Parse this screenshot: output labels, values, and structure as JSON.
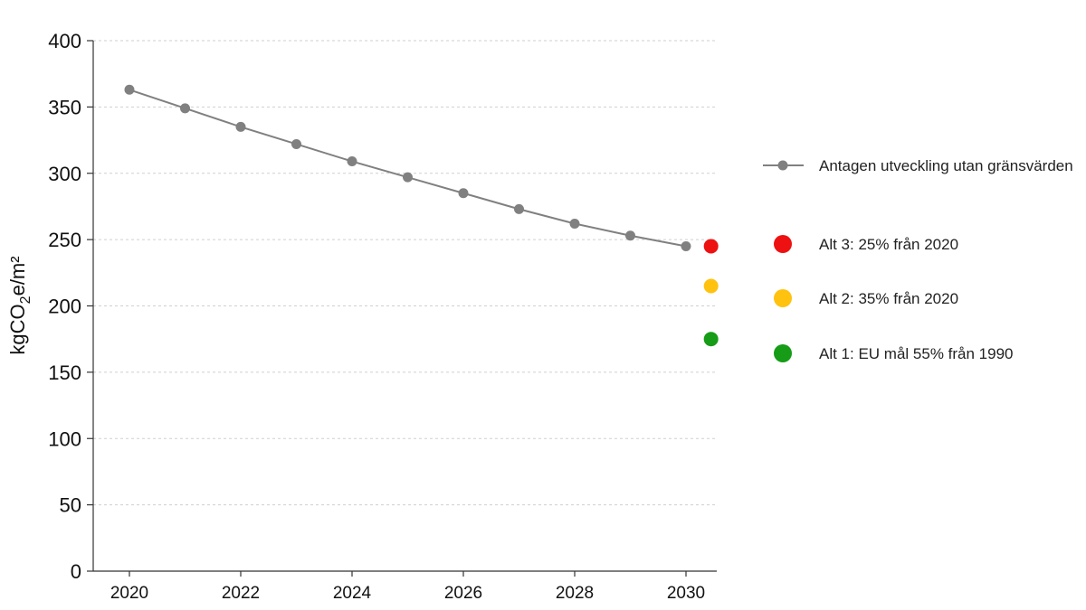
{
  "chart_data": {
    "type": "line",
    "ylabel": {
      "prefix": "kgCO",
      "sub": "2",
      "suffix": "e/m²"
    },
    "ylim": [
      0,
      400
    ],
    "yticks": [
      0,
      50,
      100,
      150,
      200,
      250,
      300,
      350,
      400
    ],
    "xlim": [
      2020,
      2030.5
    ],
    "xticks": [
      2020,
      2022,
      2024,
      2026,
      2028,
      2030
    ],
    "grid": true,
    "legend_position": "right",
    "series": [
      {
        "name": "Antagen utveckling utan gränsvärden",
        "color": "#808080",
        "x": [
          2020,
          2021,
          2022,
          2023,
          2024,
          2025,
          2026,
          2027,
          2028,
          2029,
          2030
        ],
        "y": [
          363,
          349,
          335,
          322,
          309,
          297,
          285,
          273,
          262,
          253,
          245
        ]
      }
    ],
    "points": [
      {
        "name": "Alt 3: 25% från 2020",
        "x": 2030.45,
        "y": 245,
        "color": "#ee1111"
      },
      {
        "name": "Alt 2: 35% från 2020",
        "x": 2030.45,
        "y": 215,
        "color": "#ffc20e"
      },
      {
        "name": "Alt 1: EU mål 55% från 1990",
        "x": 2030.45,
        "y": 175,
        "color": "#169c16"
      }
    ]
  }
}
